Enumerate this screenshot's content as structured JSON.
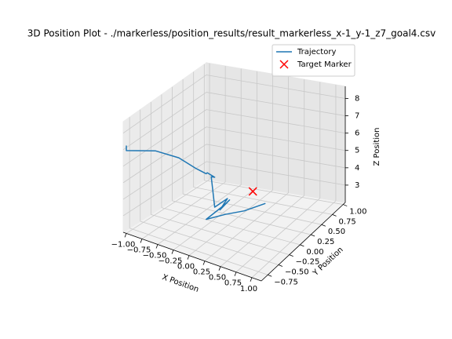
{
  "chart_data": {
    "type": "line3d",
    "title": "3D Position Plot - ./markerless/position_results/result_markerless_x-1_y-1_z7_goal4.csv",
    "xlabel": "X Position",
    "ylabel": "Y Position",
    "zlabel": "Z Position",
    "xlim": [
      -1.05,
      1.15
    ],
    "ylim": [
      -0.9,
      1.05
    ],
    "zlim": [
      2.0,
      8.7
    ],
    "xticks": [
      {
        "value": -1,
        "label": "−1.00"
      },
      {
        "value": -0.75,
        "label": "−0.75"
      },
      {
        "value": -0.5,
        "label": "−0.50"
      },
      {
        "value": -0.25,
        "label": "−0.25"
      },
      {
        "value": 0,
        "label": "0.00"
      },
      {
        "value": 0.25,
        "label": "0.25"
      },
      {
        "value": 0.5,
        "label": "0.50"
      },
      {
        "value": 0.75,
        "label": "0.75"
      },
      {
        "value": 1,
        "label": "1.00"
      }
    ],
    "yticks": [
      {
        "value": -0.75,
        "label": "−0.75"
      },
      {
        "value": -0.5,
        "label": "−0.50"
      },
      {
        "value": -0.25,
        "label": "−0.25"
      },
      {
        "value": 0,
        "label": "0.00"
      },
      {
        "value": 0.25,
        "label": "0.25"
      },
      {
        "value": 0.5,
        "label": "0.50"
      },
      {
        "value": 0.75,
        "label": "0.75"
      },
      {
        "value": 1,
        "label": "1.00"
      }
    ],
    "zticks": [
      3,
      4,
      5,
      6,
      7,
      8
    ],
    "grid": true,
    "legend": "upper right",
    "series": [
      {
        "name": "Trajectory",
        "color": "#1f77b4",
        "x": [
          -1.0,
          -1.0,
          -0.6,
          -0.3,
          -0.1,
          0.0,
          0.05,
          0.1,
          0.08,
          0.1,
          0.2,
          0.15,
          0.22,
          0.18,
          0.0,
          0.2,
          0.4,
          0.6
        ],
        "y": [
          -0.9,
          -0.9,
          -0.8,
          -0.7,
          -0.6,
          -0.5,
          -0.55,
          -0.45,
          -0.5,
          -0.45,
          -0.3,
          -0.4,
          -0.28,
          -0.35,
          -0.5,
          -0.35,
          -0.2,
          0.0
        ],
        "z": [
          7.3,
          7.0,
          7.2,
          6.9,
          6.3,
          5.9,
          6.1,
          5.7,
          5.8,
          4.0,
          4.3,
          3.8,
          4.2,
          4.0,
          3.3,
          3.5,
          3.6,
          3.8
        ]
      },
      {
        "name": "Target Marker",
        "color": "#ff0000",
        "marker": "x",
        "x": [
          0.4
        ],
        "y": [
          0.0
        ],
        "z": [
          4.3
        ]
      }
    ]
  }
}
